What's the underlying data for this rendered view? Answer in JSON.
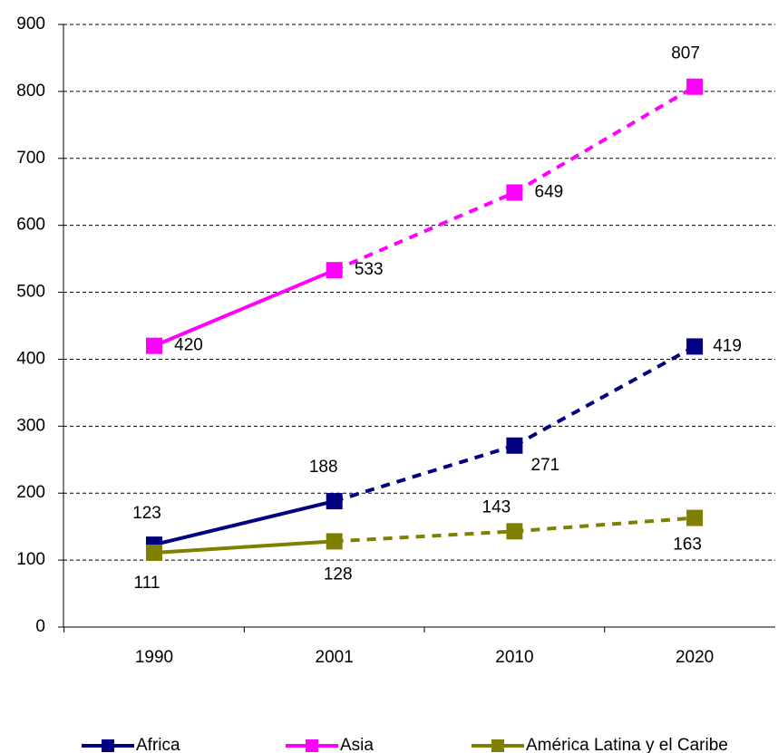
{
  "chart_data": {
    "type": "line",
    "categories": [
      "1990",
      "2001",
      "2010",
      "2020"
    ],
    "series": [
      {
        "name": "Africa",
        "color": "#000080",
        "values": [
          123,
          188,
          271,
          419
        ],
        "dash_from": 1
      },
      {
        "name": "Asia",
        "color": "#ff00ff",
        "values": [
          420,
          533,
          649,
          807
        ],
        "dash_from": 1
      },
      {
        "name": "América Latina y el Caribe",
        "color": "#808000",
        "values": [
          111,
          128,
          143,
          163
        ],
        "dash_from": 1
      }
    ],
    "ylim": [
      0,
      900
    ],
    "yticks": [
      0,
      100,
      200,
      300,
      400,
      500,
      600,
      700,
      800,
      900
    ],
    "grid": true,
    "legend": "bottom"
  }
}
